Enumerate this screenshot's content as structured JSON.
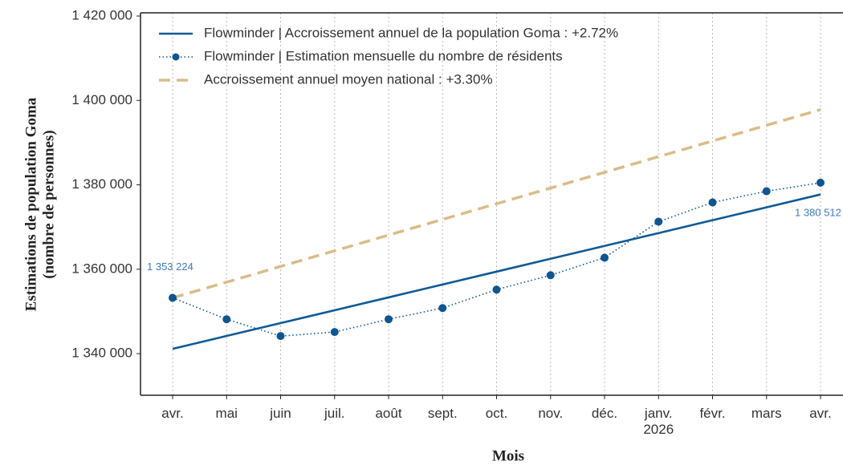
{
  "chart_data": {
    "type": "line",
    "xlabel": "Mois",
    "ylabel": [
      "Estimations de population Goma",
      "(nombre de personnes)"
    ],
    "categories": [
      "avr.",
      "mai",
      "juin",
      "juil.",
      "août",
      "sept.",
      "oct.",
      "nov.",
      "déc.",
      "janv.\n2026",
      "févr.",
      "mars",
      "avr."
    ],
    "series": [
      {
        "name": "Flowminder | Accroissement annuel de la population Goma : +2.72%",
        "color": "#0f5a96",
        "style": "solid",
        "values": [
          1341140,
          1344190,
          1347240,
          1350280,
          1353330,
          1356380,
          1359430,
          1362480,
          1365530,
          1368570,
          1371620,
          1374670,
          1377720
        ]
      },
      {
        "name": "Flowminder | Estimation mensuelle du nombre de résidents",
        "color": "#0d5593",
        "style": "dotted",
        "markers": true,
        "values": [
          1353224,
          1348150,
          1344170,
          1345120,
          1348150,
          1350800,
          1355170,
          1358580,
          1362750,
          1371280,
          1375830,
          1378480,
          1380512
        ],
        "value_labels": [
          "1 353 224",
          null,
          null,
          null,
          null,
          null,
          null,
          null,
          null,
          null,
          null,
          null,
          "1 380 512"
        ]
      },
      {
        "name": "Accroissement annuel moyen national : +3.30%",
        "color": "#d9bd87",
        "style": "dashed",
        "values": [
          1353224,
          1356940,
          1360660,
          1364370,
          1368090,
          1371810,
          1375520,
          1379240,
          1382960,
          1386680,
          1390390,
          1394110,
          1397820
        ]
      }
    ],
    "ylim": [
      1330140,
      1420760
    ],
    "yticks": [
      {
        "value": 1340000,
        "label": "1 340 000"
      },
      {
        "value": 1360000,
        "label": "1 360 000"
      },
      {
        "value": 1380000,
        "label": "1 380 000"
      },
      {
        "value": 1400000,
        "label": "1 400 000"
      },
      {
        "value": 1420000,
        "label": "1 420 000"
      }
    ],
    "grid": "x",
    "legend": "upper left"
  }
}
